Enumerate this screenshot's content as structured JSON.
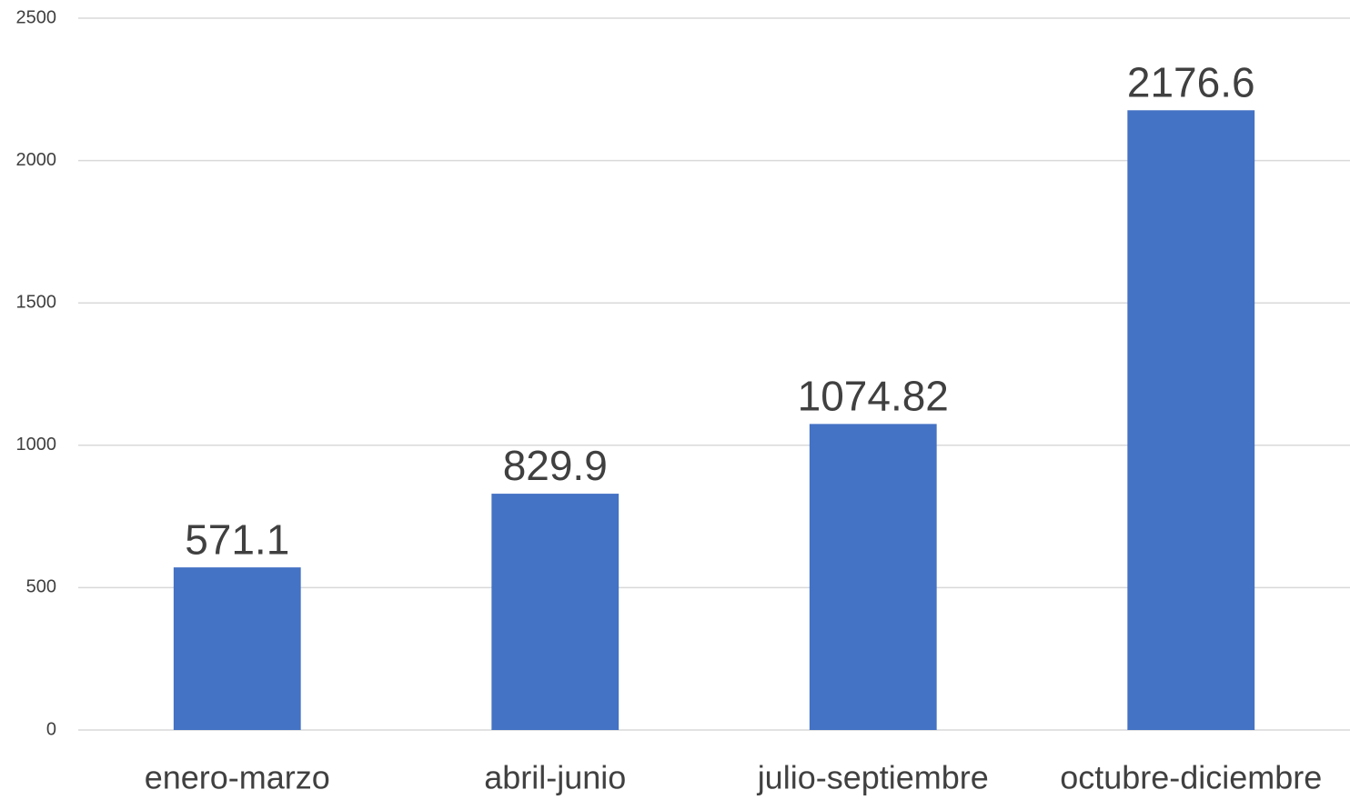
{
  "chart_data": {
    "type": "bar",
    "categories": [
      "enero-marzo",
      "abril-junio",
      "julio-septiembre",
      "octubre-diciembre"
    ],
    "values": [
      571.1,
      829.9,
      1074.82,
      2176.6
    ],
    "color": "#4472c4",
    "ylim": [
      0,
      2500
    ],
    "yticks": [
      0,
      500,
      1000,
      1500,
      2000,
      2500
    ],
    "grid": true
  }
}
